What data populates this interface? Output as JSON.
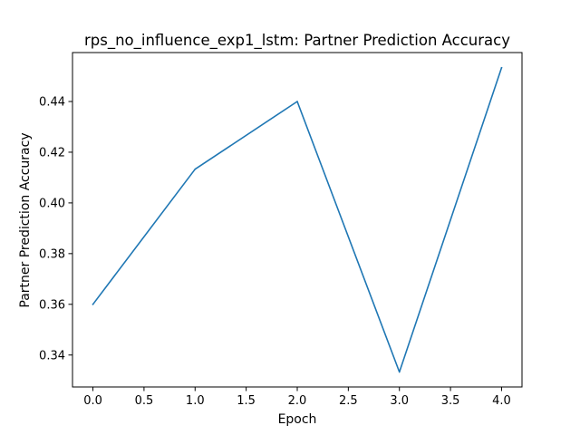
{
  "chart_data": {
    "type": "line",
    "title": "rps_no_influence_exp1_lstm: Partner Prediction Accuracy",
    "xlabel": "Epoch",
    "ylabel": "Partner Prediction Accuracy",
    "xlim": [
      -0.2,
      4.2
    ],
    "ylim": [
      0.3274,
      0.4593
    ],
    "xticks": [
      0.0,
      0.5,
      1.0,
      1.5,
      2.0,
      2.5,
      3.0,
      3.5,
      4.0
    ],
    "xtick_labels": [
      "0.0",
      "0.5",
      "1.0",
      "1.5",
      "2.0",
      "2.5",
      "3.0",
      "3.5",
      "4.0"
    ],
    "yticks": [
      0.34,
      0.36,
      0.38,
      0.4,
      0.42,
      0.44
    ],
    "ytick_labels": [
      "0.34",
      "0.36",
      "0.38",
      "0.40",
      "0.42",
      "0.44"
    ],
    "grid": false,
    "series": [
      {
        "x": [
          0,
          1,
          2,
          3,
          4
        ],
        "values": [
          0.36,
          0.4133,
          0.44,
          0.3333,
          0.4533
        ],
        "color": "#1f77b4"
      }
    ]
  }
}
